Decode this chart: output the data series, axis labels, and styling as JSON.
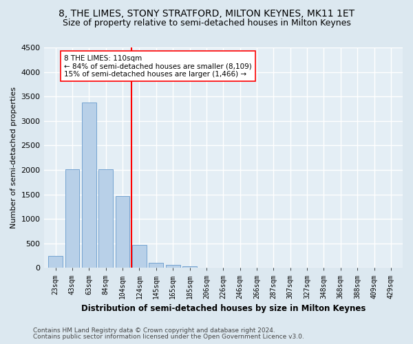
{
  "title": "8, THE LIMES, STONY STRATFORD, MILTON KEYNES, MK11 1ET",
  "subtitle": "Size of property relative to semi-detached houses in Milton Keynes",
  "xlabel": "Distribution of semi-detached houses by size in Milton Keynes",
  "ylabel": "Number of semi-detached properties",
  "footer_line1": "Contains HM Land Registry data © Crown copyright and database right 2024.",
  "footer_line2": "Contains public sector information licensed under the Open Government Licence v3.0.",
  "categories": [
    "23sqm",
    "43sqm",
    "63sqm",
    "84sqm",
    "104sqm",
    "124sqm",
    "145sqm",
    "165sqm",
    "185sqm",
    "206sqm",
    "226sqm",
    "246sqm",
    "266sqm",
    "287sqm",
    "307sqm",
    "327sqm",
    "348sqm",
    "368sqm",
    "388sqm",
    "409sqm",
    "429sqm"
  ],
  "values": [
    250,
    2020,
    3370,
    2020,
    1460,
    470,
    100,
    55,
    40,
    0,
    0,
    0,
    0,
    0,
    0,
    0,
    0,
    0,
    0,
    0,
    0
  ],
  "bar_color": "#b8d0e8",
  "bar_edge_color": "#6699cc",
  "vline_x": 4.55,
  "vline_color": "red",
  "annotation_text": "8 THE LIMES: 110sqm\n← 84% of semi-detached houses are smaller (8,109)\n15% of semi-detached houses are larger (1,466) →",
  "annotation_box_color": "white",
  "annotation_box_edge": "red",
  "ylim": [
    0,
    4500
  ],
  "yticks": [
    0,
    500,
    1000,
    1500,
    2000,
    2500,
    3000,
    3500,
    4000,
    4500
  ],
  "bg_color": "#dce8f0",
  "plot_bg_color": "#e4eef5",
  "title_fontsize": 10,
  "subtitle_fontsize": 9
}
